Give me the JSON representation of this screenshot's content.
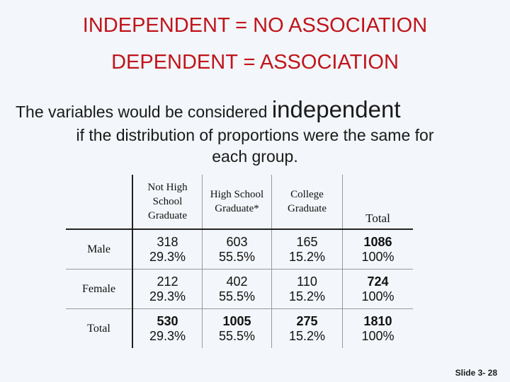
{
  "title": {
    "line1": "INDEPENDENT = NO ASSOCIATION",
    "line2": "DEPENDENT = ASSOCIATION"
  },
  "body": {
    "line1_text": "The variables would be considered ",
    "line1_emphasis": "independent",
    "line2": "if  the distribution of proportions were the same for",
    "line3": "each group."
  },
  "table": {
    "columns": [
      "Not High School Graduate",
      "High School Graduate*",
      "College Graduate",
      "Total"
    ],
    "rows": [
      {
        "label": "Male",
        "cells": [
          {
            "count": "318",
            "pct": "29.3%"
          },
          {
            "count": "603",
            "pct": "55.5%"
          },
          {
            "count": "165",
            "pct": "15.2%"
          },
          {
            "count": "1086",
            "pct": "100%"
          }
        ]
      },
      {
        "label": "Female",
        "cells": [
          {
            "count": "212",
            "pct": "29.3%"
          },
          {
            "count": "402",
            "pct": "55.5%"
          },
          {
            "count": "110",
            "pct": "15.2%"
          },
          {
            "count": "724",
            "pct": "100%"
          }
        ]
      },
      {
        "label": "Total",
        "cells": [
          {
            "count": "530",
            "pct": "29.3%"
          },
          {
            "count": "1005",
            "pct": "55.5%"
          },
          {
            "count": "275",
            "pct": "15.2%"
          },
          {
            "count": "1810",
            "pct": "100%"
          }
        ]
      }
    ]
  },
  "footer": {
    "slide_number": "Slide 3- 28"
  }
}
